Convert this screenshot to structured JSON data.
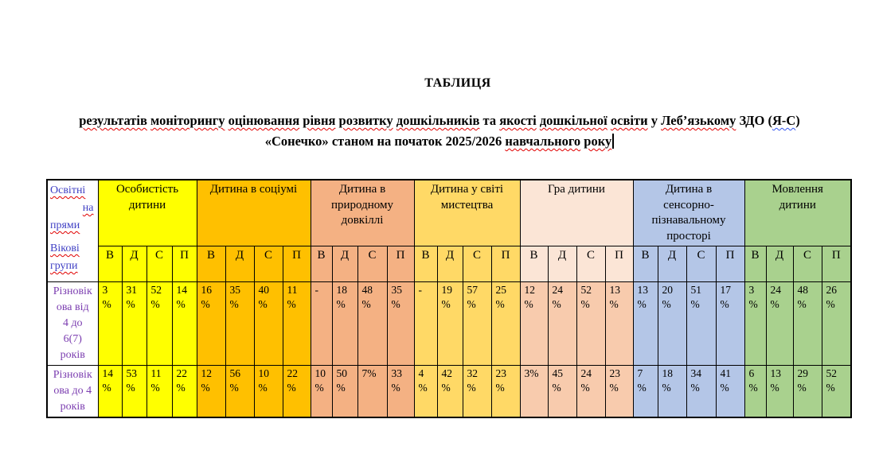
{
  "page": {
    "title": "ТАБЛИЦЯ",
    "subtitle_line1": [
      {
        "t": "результатів",
        "m": "red"
      },
      {
        "t": "моніторингу",
        "m": "red"
      },
      {
        "t": "оцінювання",
        "m": "red"
      },
      {
        "t": "рівня",
        "m": "red"
      },
      {
        "t": "розвитку",
        "m": "red"
      },
      {
        "t": "дошкільників",
        "m": "red"
      },
      {
        "t": "та",
        "m": "none"
      },
      {
        "t": "якості",
        "m": "red"
      },
      {
        "t": "дошкільної",
        "m": "red"
      },
      {
        "t": "освіти",
        "m": "red"
      },
      {
        "t": "у",
        "m": "none"
      },
      {
        "t": "Леб’язькому",
        "m": "red"
      },
      {
        "t": "ЗДО",
        "m": "none"
      },
      {
        "t": "(",
        "m": "none",
        "glue": true
      },
      {
        "t": "Я-С",
        "m": "blue",
        "glue": true
      },
      {
        "t": ")",
        "m": "none"
      }
    ],
    "subtitle_line2": [
      {
        "t": "«Сонечко»",
        "m": "none"
      },
      {
        "t": "станом",
        "m": "none"
      },
      {
        "t": "на",
        "m": "none"
      },
      {
        "t": "початок",
        "m": "none"
      },
      {
        "t": "2025/2026",
        "m": "none"
      },
      {
        "t": "навчального",
        "m": "red"
      },
      {
        "t": "року",
        "m": "red"
      }
    ],
    "has_text_cursor": true
  },
  "table": {
    "corner": {
      "para1_lines": [
        "Освітні",
        "на",
        "прями"
      ],
      "para2_lines": [
        "Вікові",
        "групи"
      ],
      "full_text": "Освітні напрями / Вікові групи",
      "text_color": "#4040C4"
    },
    "subheaders": [
      "В",
      "Д",
      "С",
      "П"
    ],
    "row_label_color": "#7B3DB0",
    "groups": [
      {
        "label": "Особистість дитини",
        "header_bg": "#FFFF00",
        "data_bg": "#FFFF00"
      },
      {
        "label": "Дитина в соціумі",
        "header_bg": "#FFC000",
        "data_bg": "#FFC000"
      },
      {
        "label": "Дитина в природному довкіллі",
        "header_bg": "#F4B183",
        "data_bg": "#F4B183"
      },
      {
        "label": "Дитина у світі мистецтва",
        "header_bg": "#FFD966",
        "data_bg": "#FFD966"
      },
      {
        "label": "Гра дитини",
        "header_bg": "#FBE5D6",
        "data_bg": "#F8CBAD"
      },
      {
        "label": "Дитина в сенсорно-пізнавальному просторі",
        "header_bg": "#B4C6E7",
        "data_bg": "#B4C6E7"
      },
      {
        "label": "Мовлення дитини",
        "header_bg": "#A9D18E",
        "data_bg": "#A9D18E"
      }
    ],
    "rows": [
      {
        "label": "Різновікова від 4 до 6(7) років",
        "label_lines": [
          "Різновік",
          "ова від",
          "4 до",
          "6(7)",
          "років"
        ],
        "cells": [
          [
            "3\n%",
            "31\n%",
            "52\n%",
            "14\n%"
          ],
          [
            "16\n%",
            "35\n%",
            "40\n%",
            "11\n%"
          ],
          [
            "-",
            "18\n%",
            "48\n%",
            "35\n%"
          ],
          [
            "-",
            "19\n%",
            "57\n%",
            "25\n%"
          ],
          [
            "12\n%",
            "24\n%",
            "52\n%",
            "13\n%"
          ],
          [
            "13\n%",
            "20\n%",
            "51\n%",
            "17\n%"
          ],
          [
            "3\n%",
            "24\n%",
            "48\n%",
            "26\n%"
          ]
        ]
      },
      {
        "label": "Різновікова до 4 років",
        "label_lines": [
          "Різновік",
          "ова до 4",
          "років"
        ],
        "cells": [
          [
            "14\n%",
            "53\n%",
            "11\n%",
            "22\n%"
          ],
          [
            "12\n%",
            "56\n%",
            "10\n%",
            "22\n%"
          ],
          [
            "10\n%",
            "50\n%",
            "7%",
            "33\n%"
          ],
          [
            "4\n%",
            "42\n%",
            "32\n%",
            "23\n%"
          ],
          [
            "3%",
            "45\n%",
            "24\n%",
            "23\n%"
          ],
          [
            "7\n%",
            "18\n%",
            "34\n%",
            "41\n%"
          ],
          [
            "6\n%",
            "13\n%",
            "29\n%",
            "52\n%"
          ]
        ]
      }
    ]
  }
}
